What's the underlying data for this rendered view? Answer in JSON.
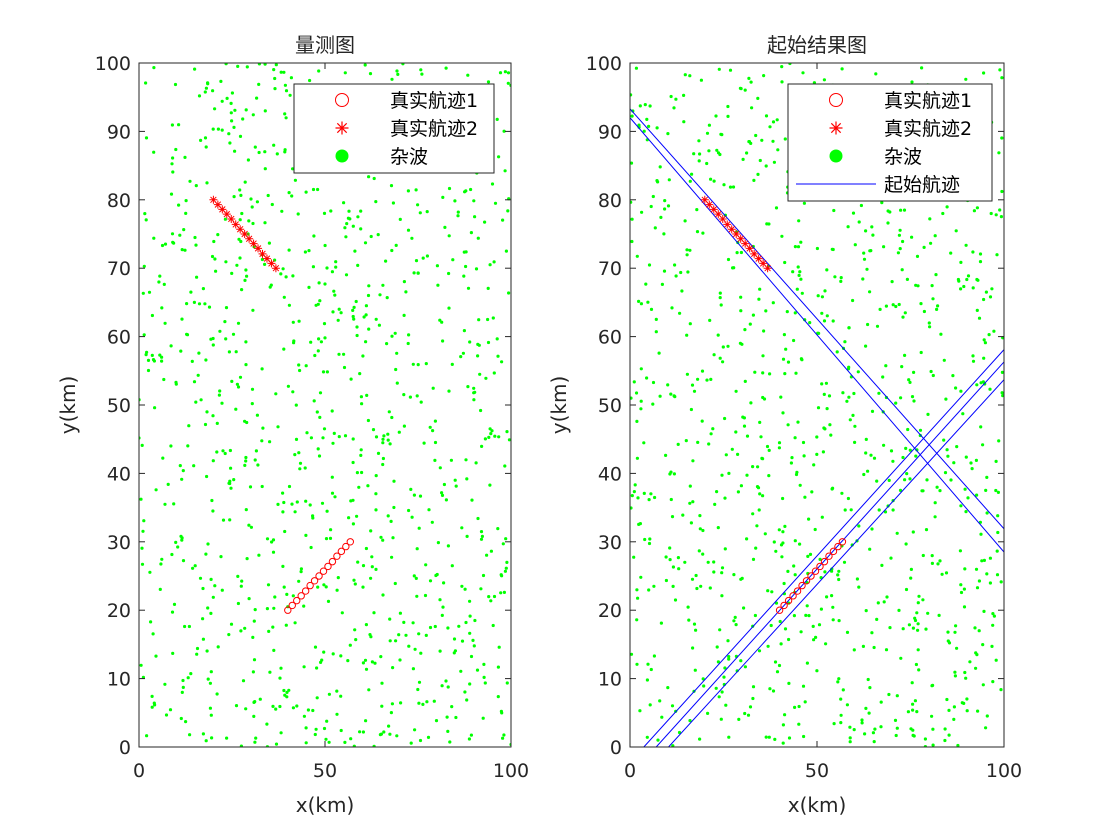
{
  "chart_data": [
    {
      "type": "scatter",
      "title": "量测图",
      "xlabel": "x(km)",
      "ylabel": "y(km)",
      "xlim": [
        0,
        100
      ],
      "ylim": [
        0,
        100
      ],
      "xticks": [
        "0",
        "50",
        "100"
      ],
      "yticks": [
        "0",
        "10",
        "20",
        "30",
        "40",
        "50",
        "60",
        "70",
        "80",
        "90",
        "100"
      ],
      "grid": false,
      "legend_position": "top-right",
      "series": [
        {
          "name": "真实航迹1",
          "marker": "circle",
          "color": "#ff0000",
          "x": [
            40,
            41.2,
            42.4,
            43.6,
            44.8,
            46,
            47.2,
            48.4,
            49.6,
            50.8,
            52,
            53.2,
            54.4,
            55.6,
            56.8
          ],
          "y": [
            20,
            20.7,
            21.4,
            22.1,
            22.8,
            23.6,
            24.3,
            25,
            25.7,
            26.4,
            27.1,
            27.9,
            28.6,
            29.3,
            30
          ]
        },
        {
          "name": "真实航迹2",
          "marker": "asterisk",
          "color": "#ff0000",
          "x": [
            20,
            21.2,
            22.4,
            23.6,
            24.8,
            26,
            27.2,
            28.4,
            29.6,
            30.8,
            32,
            33.2,
            34.4,
            35.6,
            36.8
          ],
          "y": [
            80,
            79.3,
            78.6,
            77.9,
            77.2,
            76.4,
            75.7,
            75,
            74.3,
            73.6,
            72.9,
            72.1,
            71.4,
            70.7,
            70
          ]
        },
        {
          "name": "杂波",
          "marker": "dot",
          "color": "#00ff00",
          "count": 1000,
          "distribution": "uniform"
        }
      ]
    },
    {
      "type": "scatter",
      "title": "起始结果图",
      "xlabel": "x(km)",
      "ylabel": "y(km)",
      "xlim": [
        0,
        100
      ],
      "ylim": [
        0,
        100
      ],
      "xticks": [
        "0",
        "50",
        "100"
      ],
      "yticks": [
        "0",
        "10",
        "20",
        "30",
        "40",
        "50",
        "60",
        "70",
        "80",
        "90",
        "100"
      ],
      "grid": false,
      "legend_position": "top-right",
      "series": [
        {
          "name": "真实航迹1",
          "marker": "circle",
          "color": "#ff0000",
          "x": [
            40,
            41.2,
            42.4,
            43.6,
            44.8,
            46,
            47.2,
            48.4,
            49.6,
            50.8,
            52,
            53.2,
            54.4,
            55.6,
            56.8
          ],
          "y": [
            20,
            20.7,
            21.4,
            22.1,
            22.8,
            23.6,
            24.3,
            25,
            25.7,
            26.4,
            27.1,
            27.9,
            28.6,
            29.3,
            30
          ]
        },
        {
          "name": "真实航迹2",
          "marker": "asterisk",
          "color": "#ff0000",
          "x": [
            20,
            21.2,
            22.4,
            23.6,
            24.8,
            26,
            27.2,
            28.4,
            29.6,
            30.8,
            32,
            33.2,
            34.4,
            35.6,
            36.8
          ],
          "y": [
            80,
            79.3,
            78.6,
            77.9,
            77.2,
            76.4,
            75.7,
            75,
            74.3,
            73.6,
            72.9,
            72.1,
            71.4,
            70.7,
            70
          ]
        },
        {
          "name": "杂波",
          "marker": "dot",
          "color": "#00ff00",
          "count": 1000,
          "distribution": "uniform"
        },
        {
          "name": "起始航迹",
          "marker": "line",
          "color": "#0000ff",
          "lines": [
            {
              "x": [
                0,
                100
              ],
              "y": [
                93.3,
                31.9
              ]
            },
            {
              "x": [
                0,
                100
              ],
              "y": [
                92.0,
                28.5
              ]
            },
            {
              "x": [
                3.7,
                100
              ],
              "y": [
                0,
                58.1
              ]
            },
            {
              "x": [
                7.0,
                100
              ],
              "y": [
                0,
                56.3
              ]
            },
            {
              "x": [
                10.3,
                100
              ],
              "y": [
                0,
                53.7
              ]
            }
          ]
        }
      ]
    }
  ]
}
